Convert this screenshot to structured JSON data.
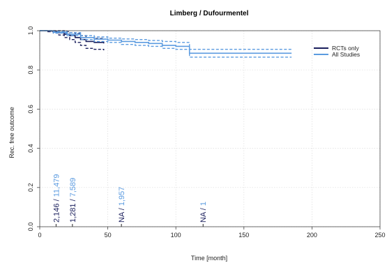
{
  "chart_data": {
    "type": "line",
    "title": "Limberg / Dufourmentel",
    "xlabel": "Time [month]",
    "ylabel": "Rec. free outcome",
    "xlim": [
      0,
      250
    ],
    "ylim": [
      0,
      1
    ],
    "x_ticks": [
      "0",
      "50",
      "100",
      "150",
      "200",
      "250"
    ],
    "y_ticks": [
      "0.0",
      "0.2",
      "0.4",
      "0.6",
      "0.8",
      "1.0"
    ],
    "grid": true,
    "legend_position": "top-right",
    "colors": {
      "rcts": "#1a1f5c",
      "all": "#5b9be0"
    },
    "series": [
      {
        "name": "RCTs only",
        "color_key": "rcts",
        "x": [
          0,
          6,
          10,
          14,
          18,
          22,
          26,
          30,
          34,
          40,
          47
        ],
        "y": [
          1.0,
          0.998,
          0.995,
          0.99,
          0.982,
          0.975,
          0.965,
          0.955,
          0.945,
          0.94,
          0.935
        ],
        "lower": [
          1.0,
          0.995,
          0.988,
          0.978,
          0.965,
          0.955,
          0.94,
          0.925,
          0.91,
          0.905,
          0.9
        ],
        "upper": [
          1.0,
          1.0,
          1.0,
          1.0,
          0.995,
          0.99,
          0.985,
          0.975,
          0.965,
          0.96,
          0.955
        ]
      },
      {
        "name": "All Studies",
        "color_key": "all",
        "x": [
          0,
          10,
          20,
          30,
          40,
          50,
          60,
          70,
          80,
          90,
          100,
          110,
          150,
          185
        ],
        "y": [
          1.0,
          0.992,
          0.982,
          0.965,
          0.957,
          0.952,
          0.945,
          0.94,
          0.935,
          0.925,
          0.92,
          0.885,
          0.885,
          0.885
        ],
        "lower": [
          1.0,
          0.988,
          0.975,
          0.955,
          0.945,
          0.94,
          0.93,
          0.925,
          0.92,
          0.91,
          0.905,
          0.865,
          0.865,
          0.865
        ],
        "upper": [
          1.0,
          0.996,
          0.99,
          0.975,
          0.968,
          0.962,
          0.958,
          0.955,
          0.95,
          0.945,
          0.94,
          0.905,
          0.905,
          0.905
        ]
      }
    ],
    "at_risk": [
      {
        "x": 12,
        "rcts": "2,146",
        "sep": "/",
        "all": "11,479"
      },
      {
        "x": 24,
        "rcts": "1,281",
        "sep": "/",
        "all": "7,589"
      },
      {
        "x": 60,
        "rcts": "NA",
        "sep": "/",
        "all": "1,957"
      },
      {
        "x": 120,
        "rcts": "NA",
        "sep": "/",
        "all": "1"
      }
    ]
  }
}
